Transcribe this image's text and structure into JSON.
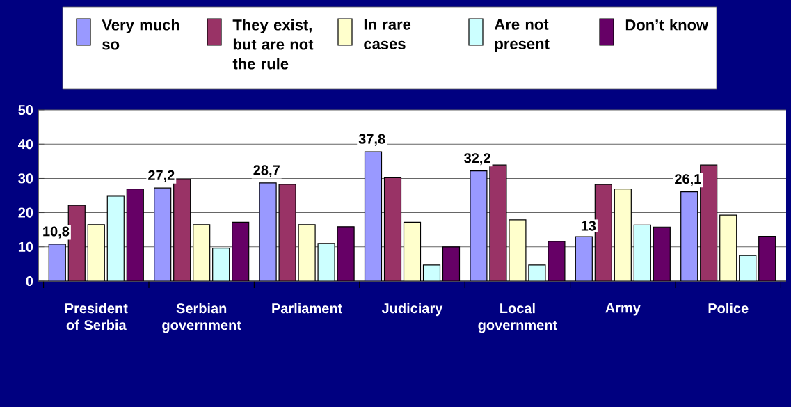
{
  "chart_data": {
    "type": "bar",
    "categories": [
      "President of Serbia",
      "Serbian government",
      "Parliament",
      "Judiciary",
      "Local government",
      "Army",
      "Police"
    ],
    "series": [
      {
        "name": "Very much so",
        "color": "#9999ff",
        "values": [
          10.8,
          27.2,
          28.7,
          37.8,
          32.2,
          13,
          26.1
        ],
        "value_labels": [
          "10,8",
          "27,2",
          "28,7",
          "37,8",
          "32,2",
          "13",
          "26,1"
        ]
      },
      {
        "name": "They exist, but are not the rule",
        "color": "#993366",
        "values": [
          22.1,
          29.7,
          28.3,
          30.2,
          33.9,
          28.2,
          33.9
        ]
      },
      {
        "name": "In rare cases",
        "color": "#ffffcc",
        "values": [
          16.5,
          16.5,
          16.5,
          17.2,
          17.9,
          26.9,
          19.3
        ]
      },
      {
        "name": "Are not present",
        "color": "#ccffff",
        "values": [
          24.8,
          9.6,
          11.0,
          4.7,
          4.7,
          16.4,
          7.5
        ]
      },
      {
        "name": "Don’t know",
        "color": "#660066",
        "values": [
          26.9,
          17.2,
          15.9,
          10.0,
          11.6,
          15.8,
          13.1
        ]
      }
    ],
    "ylim": [
      0,
      50
    ],
    "yticks": [
      0,
      10,
      20,
      30,
      40,
      50
    ],
    "grid": "y",
    "legend": "top"
  }
}
